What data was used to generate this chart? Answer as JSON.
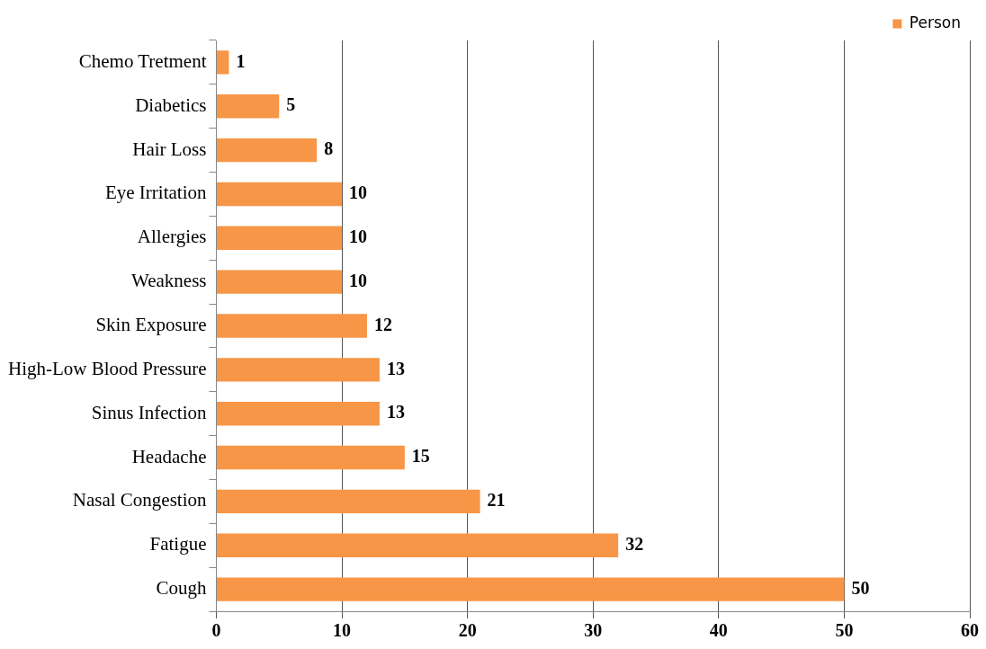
{
  "chart_data": {
    "type": "bar",
    "orientation": "horizontal",
    "categories": [
      "Chemo Tretment",
      "Diabetics",
      "Hair Loss",
      "Eye Irritation",
      "Allergies",
      "Weakness",
      "Skin Exposure",
      "High-Low Blood Pressure",
      "Sinus Infection",
      "Headache",
      "Nasal Congestion",
      "Fatigue",
      "Cough"
    ],
    "series": [
      {
        "name": "Person",
        "color": "#f79646",
        "values": [
          1,
          5,
          8,
          10,
          10,
          10,
          12,
          13,
          13,
          15,
          21,
          32,
          50
        ]
      }
    ],
    "xlim": [
      0,
      60
    ],
    "xticks": [
      0,
      10,
      20,
      30,
      40,
      50,
      60
    ],
    "grid": "x",
    "legend": "top right",
    "data_labels": true
  }
}
